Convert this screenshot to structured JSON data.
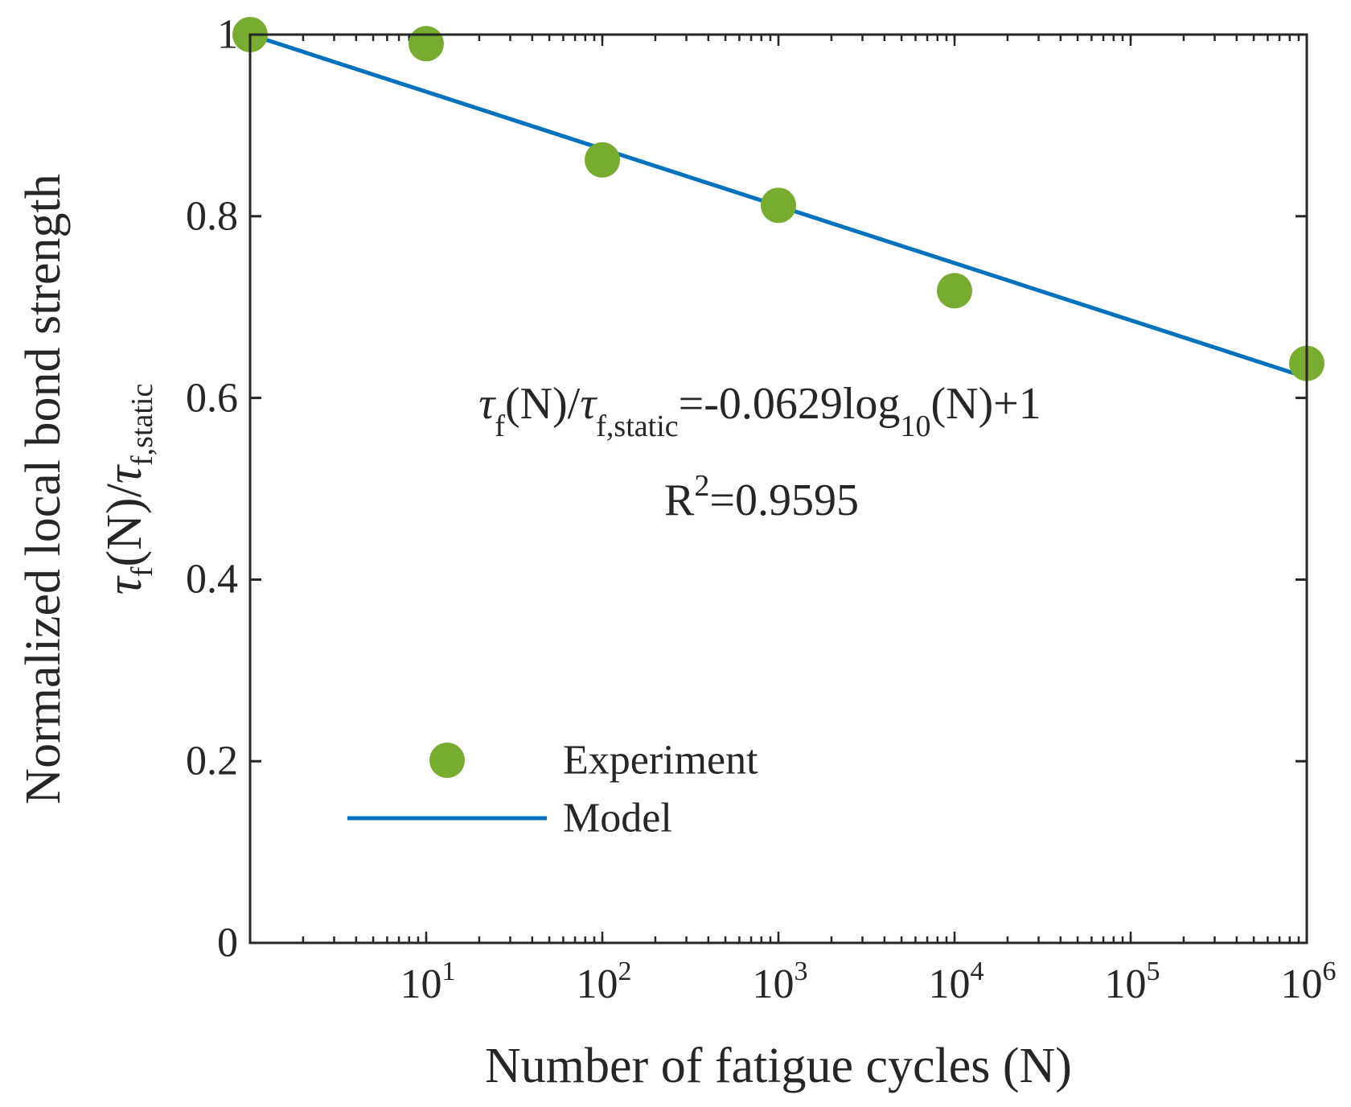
{
  "chart_data": {
    "type": "scatter",
    "xscale": "log",
    "xlim": [
      1,
      1000000
    ],
    "ylim": [
      0,
      1
    ],
    "xlabel": "Number of fatigue cycles (N)",
    "ylabel_line1": "Normalized local bond strength",
    "ylabel_line2": {
      "tau": "τ",
      "f": "f",
      "n": "(N)/",
      "tau2": "τ",
      "fstatic": "f,static"
    },
    "x_ticks": [
      {
        "base": "10",
        "exp": "1",
        "value": 10
      },
      {
        "base": "10",
        "exp": "2",
        "value": 100
      },
      {
        "base": "10",
        "exp": "3",
        "value": 1000
      },
      {
        "base": "10",
        "exp": "4",
        "value": 10000
      },
      {
        "base": "10",
        "exp": "5",
        "value": 100000
      },
      {
        "base": "10",
        "exp": "6",
        "value": 1000000
      }
    ],
    "y_ticks": [
      {
        "label": "0",
        "value": 0
      },
      {
        "label": "0.2",
        "value": 0.2
      },
      {
        "label": "0.4",
        "value": 0.4
      },
      {
        "label": "0.6",
        "value": 0.6
      },
      {
        "label": "0.8",
        "value": 0.8
      },
      {
        "label": "1",
        "value": 1
      }
    ],
    "series": [
      {
        "name": "Experiment",
        "kind": "scatter",
        "color": "#77ac30",
        "x": [
          1,
          10,
          100,
          1000,
          10000,
          1000000
        ],
        "y": [
          1.0,
          0.99,
          0.862,
          0.812,
          0.718,
          0.638
        ]
      },
      {
        "name": "Model",
        "kind": "line",
        "color": "#0072bd",
        "x": [
          1,
          1000000
        ],
        "y": [
          1.0,
          0.6226
        ]
      }
    ],
    "annotation": {
      "tau": "τ",
      "f": "f",
      "n1": "(N)/",
      "tau2": "τ",
      "fstatic": "f,static",
      "mid": "=-0.0629log",
      "base": "10",
      "end": "(N)+1",
      "r": "R",
      "r_exp": "2",
      "r_val": "=0.9595"
    },
    "legend": {
      "placement": "lower-left",
      "entries": [
        "Experiment",
        "Model"
      ]
    }
  }
}
